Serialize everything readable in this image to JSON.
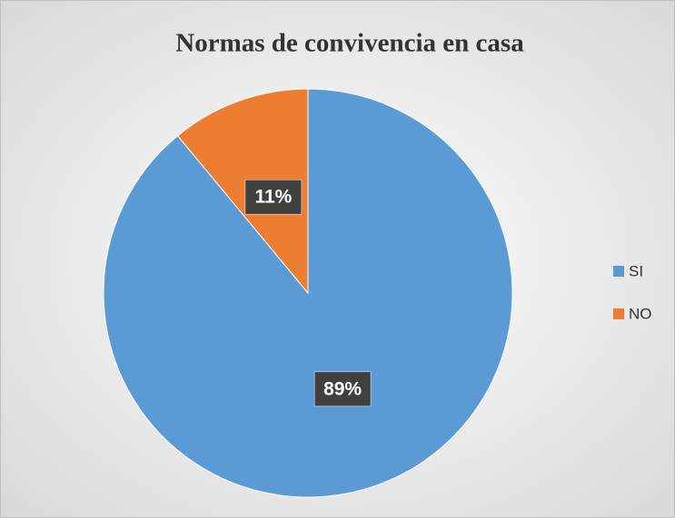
{
  "chart_data": {
    "type": "pie",
    "title": "Normas de convivencia en casa",
    "categories": [
      "SI",
      "NO"
    ],
    "values": [
      89,
      11
    ],
    "value_labels": [
      "89%",
      "11%"
    ],
    "colors": [
      "#5b9bd5",
      "#ed7d31"
    ],
    "legend": "right"
  }
}
